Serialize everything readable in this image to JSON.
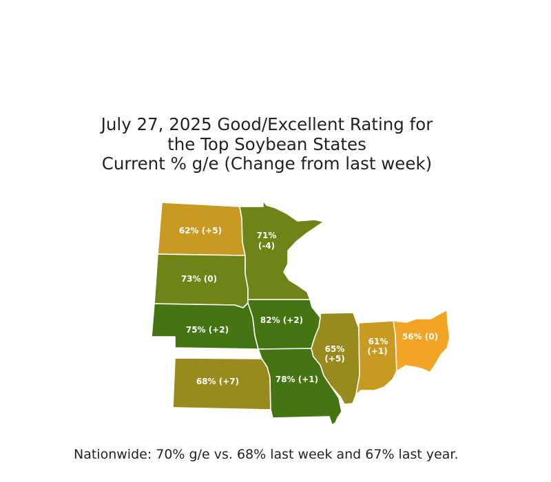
{
  "title": {
    "line1": "July 27, 2025 Good/Excellent Rating for",
    "line2": "the Top Soybean States",
    "line3": "Current % g/e (Change from last week)"
  },
  "states": {
    "north_dakota": {
      "current_pct": 62,
      "weekly_change": 5,
      "label": "62% (+5)",
      "color": "#C89A21"
    },
    "south_dakota": {
      "current_pct": 73,
      "weekly_change": 0,
      "label": "73% (0)",
      "color": "#6F8417"
    },
    "minnesota": {
      "current_pct": 71,
      "weekly_change": -4,
      "label_line1": "71%",
      "label_line2": "(-4)",
      "color": "#6F8417"
    },
    "nebraska": {
      "current_pct": 75,
      "weekly_change": 2,
      "label": "75% (+2)",
      "color": "#457512"
    },
    "iowa": {
      "current_pct": 82,
      "weekly_change": 2,
      "label": "82% (+2)",
      "color": "#457512"
    },
    "kansas": {
      "current_pct": 68,
      "weekly_change": 7,
      "label": "68% (+7)",
      "color": "#998A1D"
    },
    "missouri": {
      "current_pct": 78,
      "weekly_change": 1,
      "label": "78% (+1)",
      "color": "#457512"
    },
    "illinois": {
      "current_pct": 65,
      "weekly_change": 5,
      "label_line1": "65%",
      "label_line2": "(+5)",
      "color": "#998A1D"
    },
    "indiana": {
      "current_pct": 61,
      "weekly_change": 1,
      "label_line1": "61%",
      "label_line2": "(+1)",
      "color": "#C89A21"
    },
    "ohio": {
      "current_pct": 56,
      "weekly_change": 0,
      "label": "56% (0)",
      "color": "#F2A424"
    }
  },
  "footnote": "Nationwide: 70% g/e vs. 68% last week and 67% last year."
}
